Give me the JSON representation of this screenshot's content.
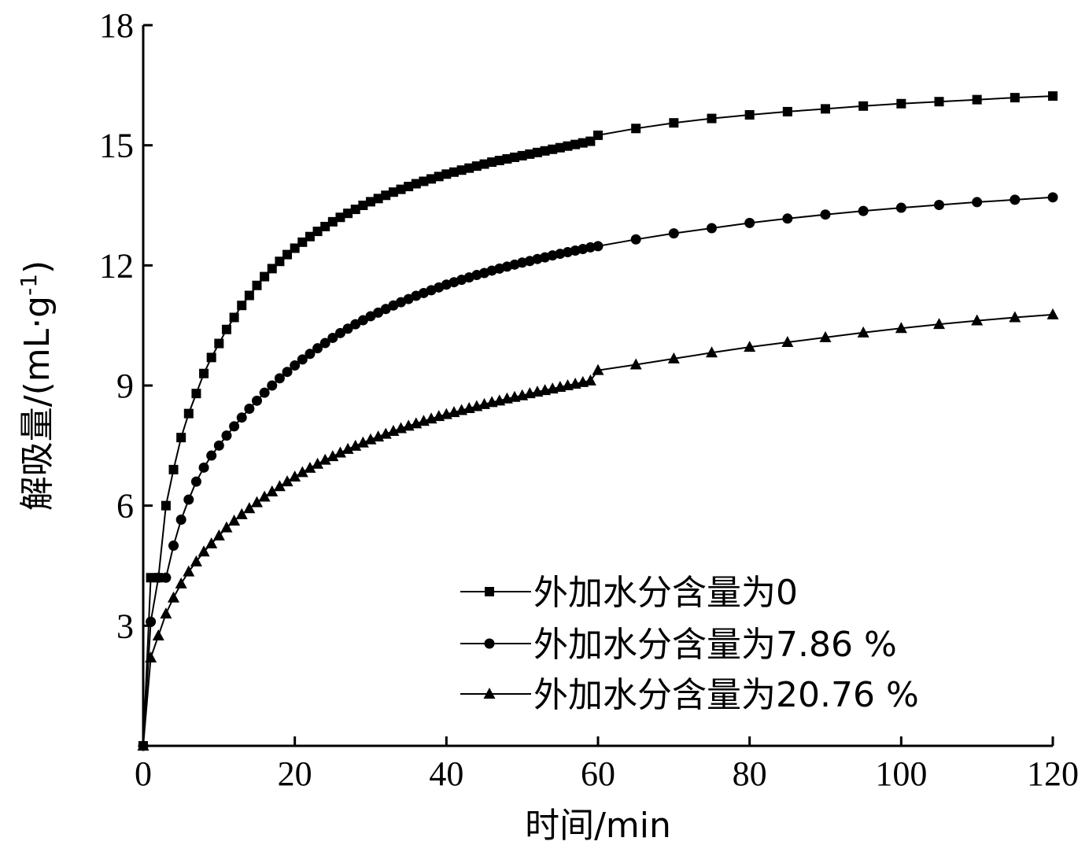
{
  "chart_data": {
    "type": "line",
    "title": "",
    "xlabel": "时间/min",
    "ylabel_main": "解吸量/(mL·g",
    "ylabel_sup": "-1",
    "ylabel_close": ")",
    "xlim": [
      0,
      120
    ],
    "ylim": [
      0,
      18
    ],
    "x_ticks": [
      0,
      20,
      40,
      60,
      80,
      100,
      120
    ],
    "y_ticks": [
      3,
      6,
      9,
      12,
      15,
      18
    ],
    "grid": false,
    "legend_position": "bottom-right",
    "series": [
      {
        "name": "外加水分含量为0",
        "marker": "square",
        "x": [
          0,
          1,
          2,
          3,
          4,
          5,
          6,
          7,
          8,
          9,
          10,
          11,
          12,
          13,
          14,
          15,
          16,
          17,
          18,
          19,
          20,
          21,
          22,
          23,
          24,
          25,
          26,
          27,
          28,
          29,
          30,
          31,
          32,
          33,
          34,
          35,
          36,
          37,
          38,
          39,
          40,
          41,
          42,
          43,
          44,
          45,
          46,
          47,
          48,
          49,
          50,
          51,
          52,
          53,
          54,
          55,
          56,
          57,
          58,
          59,
          60,
          65,
          70,
          75,
          80,
          85,
          90,
          95,
          100,
          105,
          110,
          115,
          120
        ],
        "values": [
          0.0,
          4.2,
          4.2,
          6.0,
          6.9,
          7.7,
          8.3,
          8.8,
          9.3,
          9.7,
          10.05,
          10.4,
          10.7,
          11.0,
          11.25,
          11.5,
          11.72,
          11.92,
          12.1,
          12.27,
          12.43,
          12.58,
          12.72,
          12.85,
          12.97,
          13.09,
          13.2,
          13.3,
          13.4,
          13.5,
          13.59,
          13.67,
          13.75,
          13.83,
          13.9,
          13.97,
          14.04,
          14.1,
          14.16,
          14.22,
          14.28,
          14.33,
          14.38,
          14.43,
          14.48,
          14.53,
          14.58,
          14.62,
          14.66,
          14.7,
          14.74,
          14.78,
          14.82,
          14.86,
          14.9,
          14.94,
          14.98,
          15.02,
          15.06,
          15.1,
          15.25,
          15.42,
          15.56,
          15.67,
          15.76,
          15.84,
          15.91,
          15.98,
          16.04,
          16.09,
          16.14,
          16.19,
          16.23
        ]
      },
      {
        "name": "外加水分含量为7.86 %",
        "marker": "circle",
        "x": [
          0,
          1,
          2,
          3,
          4,
          5,
          6,
          7,
          8,
          9,
          10,
          11,
          12,
          13,
          14,
          15,
          16,
          17,
          18,
          19,
          20,
          21,
          22,
          23,
          24,
          25,
          26,
          27,
          28,
          29,
          30,
          31,
          32,
          33,
          34,
          35,
          36,
          37,
          38,
          39,
          40,
          41,
          42,
          43,
          44,
          45,
          46,
          47,
          48,
          49,
          50,
          51,
          52,
          53,
          54,
          55,
          56,
          57,
          58,
          59,
          60,
          65,
          70,
          75,
          80,
          85,
          90,
          95,
          100,
          105,
          110,
          115,
          120
        ],
        "values": [
          0.0,
          3.1,
          4.2,
          4.2,
          5.0,
          5.65,
          6.15,
          6.6,
          6.95,
          7.25,
          7.5,
          7.75,
          7.98,
          8.2,
          8.42,
          8.62,
          8.82,
          9.0,
          9.18,
          9.34,
          9.5,
          9.65,
          9.79,
          9.93,
          10.06,
          10.19,
          10.31,
          10.42,
          10.53,
          10.63,
          10.73,
          10.82,
          10.91,
          11.0,
          11.08,
          11.16,
          11.24,
          11.31,
          11.38,
          11.45,
          11.52,
          11.58,
          11.64,
          11.7,
          11.76,
          11.81,
          11.87,
          11.92,
          11.97,
          12.02,
          12.07,
          12.11,
          12.16,
          12.2,
          12.25,
          12.29,
          12.33,
          12.37,
          12.41,
          12.45,
          12.48,
          12.65,
          12.8,
          12.93,
          13.06,
          13.17,
          13.27,
          13.36,
          13.44,
          13.51,
          13.58,
          13.64,
          13.7
        ]
      },
      {
        "name": "外加水分含量为20.76 %",
        "marker": "triangle",
        "x": [
          0,
          1,
          2,
          3,
          4,
          5,
          6,
          7,
          8,
          9,
          10,
          11,
          12,
          13,
          14,
          15,
          16,
          17,
          18,
          19,
          20,
          21,
          22,
          23,
          24,
          25,
          26,
          27,
          28,
          29,
          30,
          31,
          32,
          33,
          34,
          35,
          36,
          37,
          38,
          39,
          40,
          41,
          42,
          43,
          44,
          45,
          46,
          47,
          48,
          49,
          50,
          51,
          52,
          53,
          54,
          55,
          56,
          57,
          58,
          59,
          60,
          65,
          70,
          75,
          80,
          85,
          90,
          95,
          100,
          105,
          110,
          115,
          120
        ],
        "values": [
          0.0,
          2.2,
          2.75,
          3.3,
          3.7,
          4.05,
          4.35,
          4.6,
          4.85,
          5.05,
          5.25,
          5.45,
          5.62,
          5.78,
          5.93,
          6.08,
          6.22,
          6.35,
          6.48,
          6.6,
          6.72,
          6.83,
          6.94,
          7.04,
          7.14,
          7.23,
          7.32,
          7.41,
          7.49,
          7.57,
          7.65,
          7.72,
          7.79,
          7.86,
          7.93,
          7.99,
          8.05,
          8.11,
          8.17,
          8.23,
          8.28,
          8.33,
          8.38,
          8.43,
          8.48,
          8.53,
          8.58,
          8.62,
          8.67,
          8.71,
          8.75,
          8.8,
          8.84,
          8.88,
          8.92,
          8.96,
          9.0,
          9.04,
          9.08,
          9.12,
          9.38,
          9.52,
          9.67,
          9.82,
          9.96,
          10.08,
          10.2,
          10.32,
          10.43,
          10.53,
          10.62,
          10.7,
          10.77
        ]
      }
    ]
  }
}
